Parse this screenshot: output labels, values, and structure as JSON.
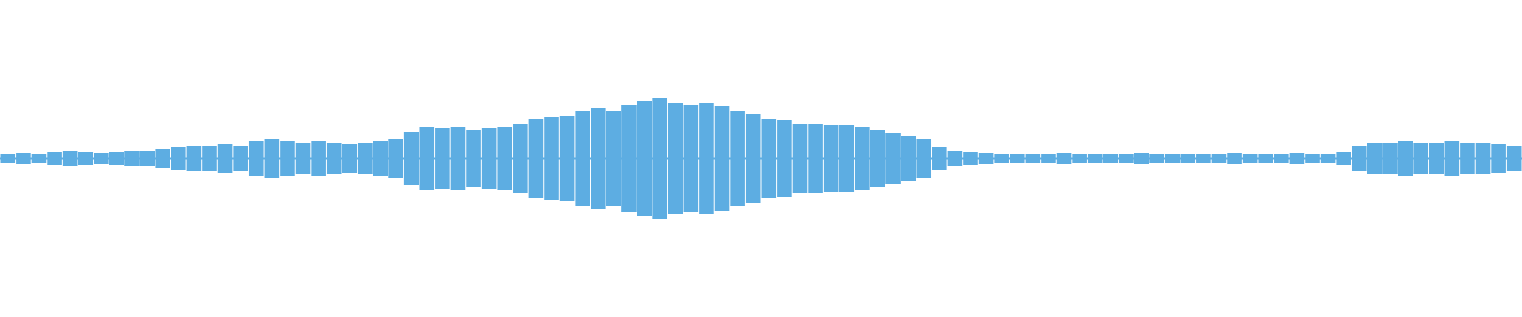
{
  "chart_data": {
    "type": "waveform",
    "color": "#5dade2",
    "ylim": [
      -1,
      1
    ],
    "values": [
      0.03,
      0.035,
      0.03,
      0.04,
      0.045,
      0.04,
      0.035,
      0.04,
      0.05,
      0.05,
      0.06,
      0.07,
      0.08,
      0.08,
      0.09,
      0.08,
      0.11,
      0.12,
      0.11,
      0.1,
      0.11,
      0.1,
      0.09,
      0.1,
      0.11,
      0.12,
      0.17,
      0.2,
      0.19,
      0.2,
      0.18,
      0.19,
      0.2,
      0.22,
      0.25,
      0.26,
      0.27,
      0.3,
      0.32,
      0.3,
      0.34,
      0.36,
      0.38,
      0.35,
      0.34,
      0.35,
      0.33,
      0.3,
      0.28,
      0.25,
      0.24,
      0.22,
      0.22,
      0.21,
      0.21,
      0.2,
      0.18,
      0.16,
      0.14,
      0.12,
      0.07,
      0.05,
      0.04,
      0.035,
      0.03,
      0.03,
      0.03,
      0.03,
      0.035,
      0.03,
      0.03,
      0.03,
      0.03,
      0.035,
      0.03,
      0.03,
      0.03,
      0.03,
      0.03,
      0.035,
      0.03,
      0.03,
      0.03,
      0.035,
      0.03,
      0.03,
      0.04,
      0.08,
      0.1,
      0.1,
      0.11,
      0.1,
      0.1,
      0.11,
      0.1,
      0.1,
      0.09,
      0.08
    ]
  }
}
